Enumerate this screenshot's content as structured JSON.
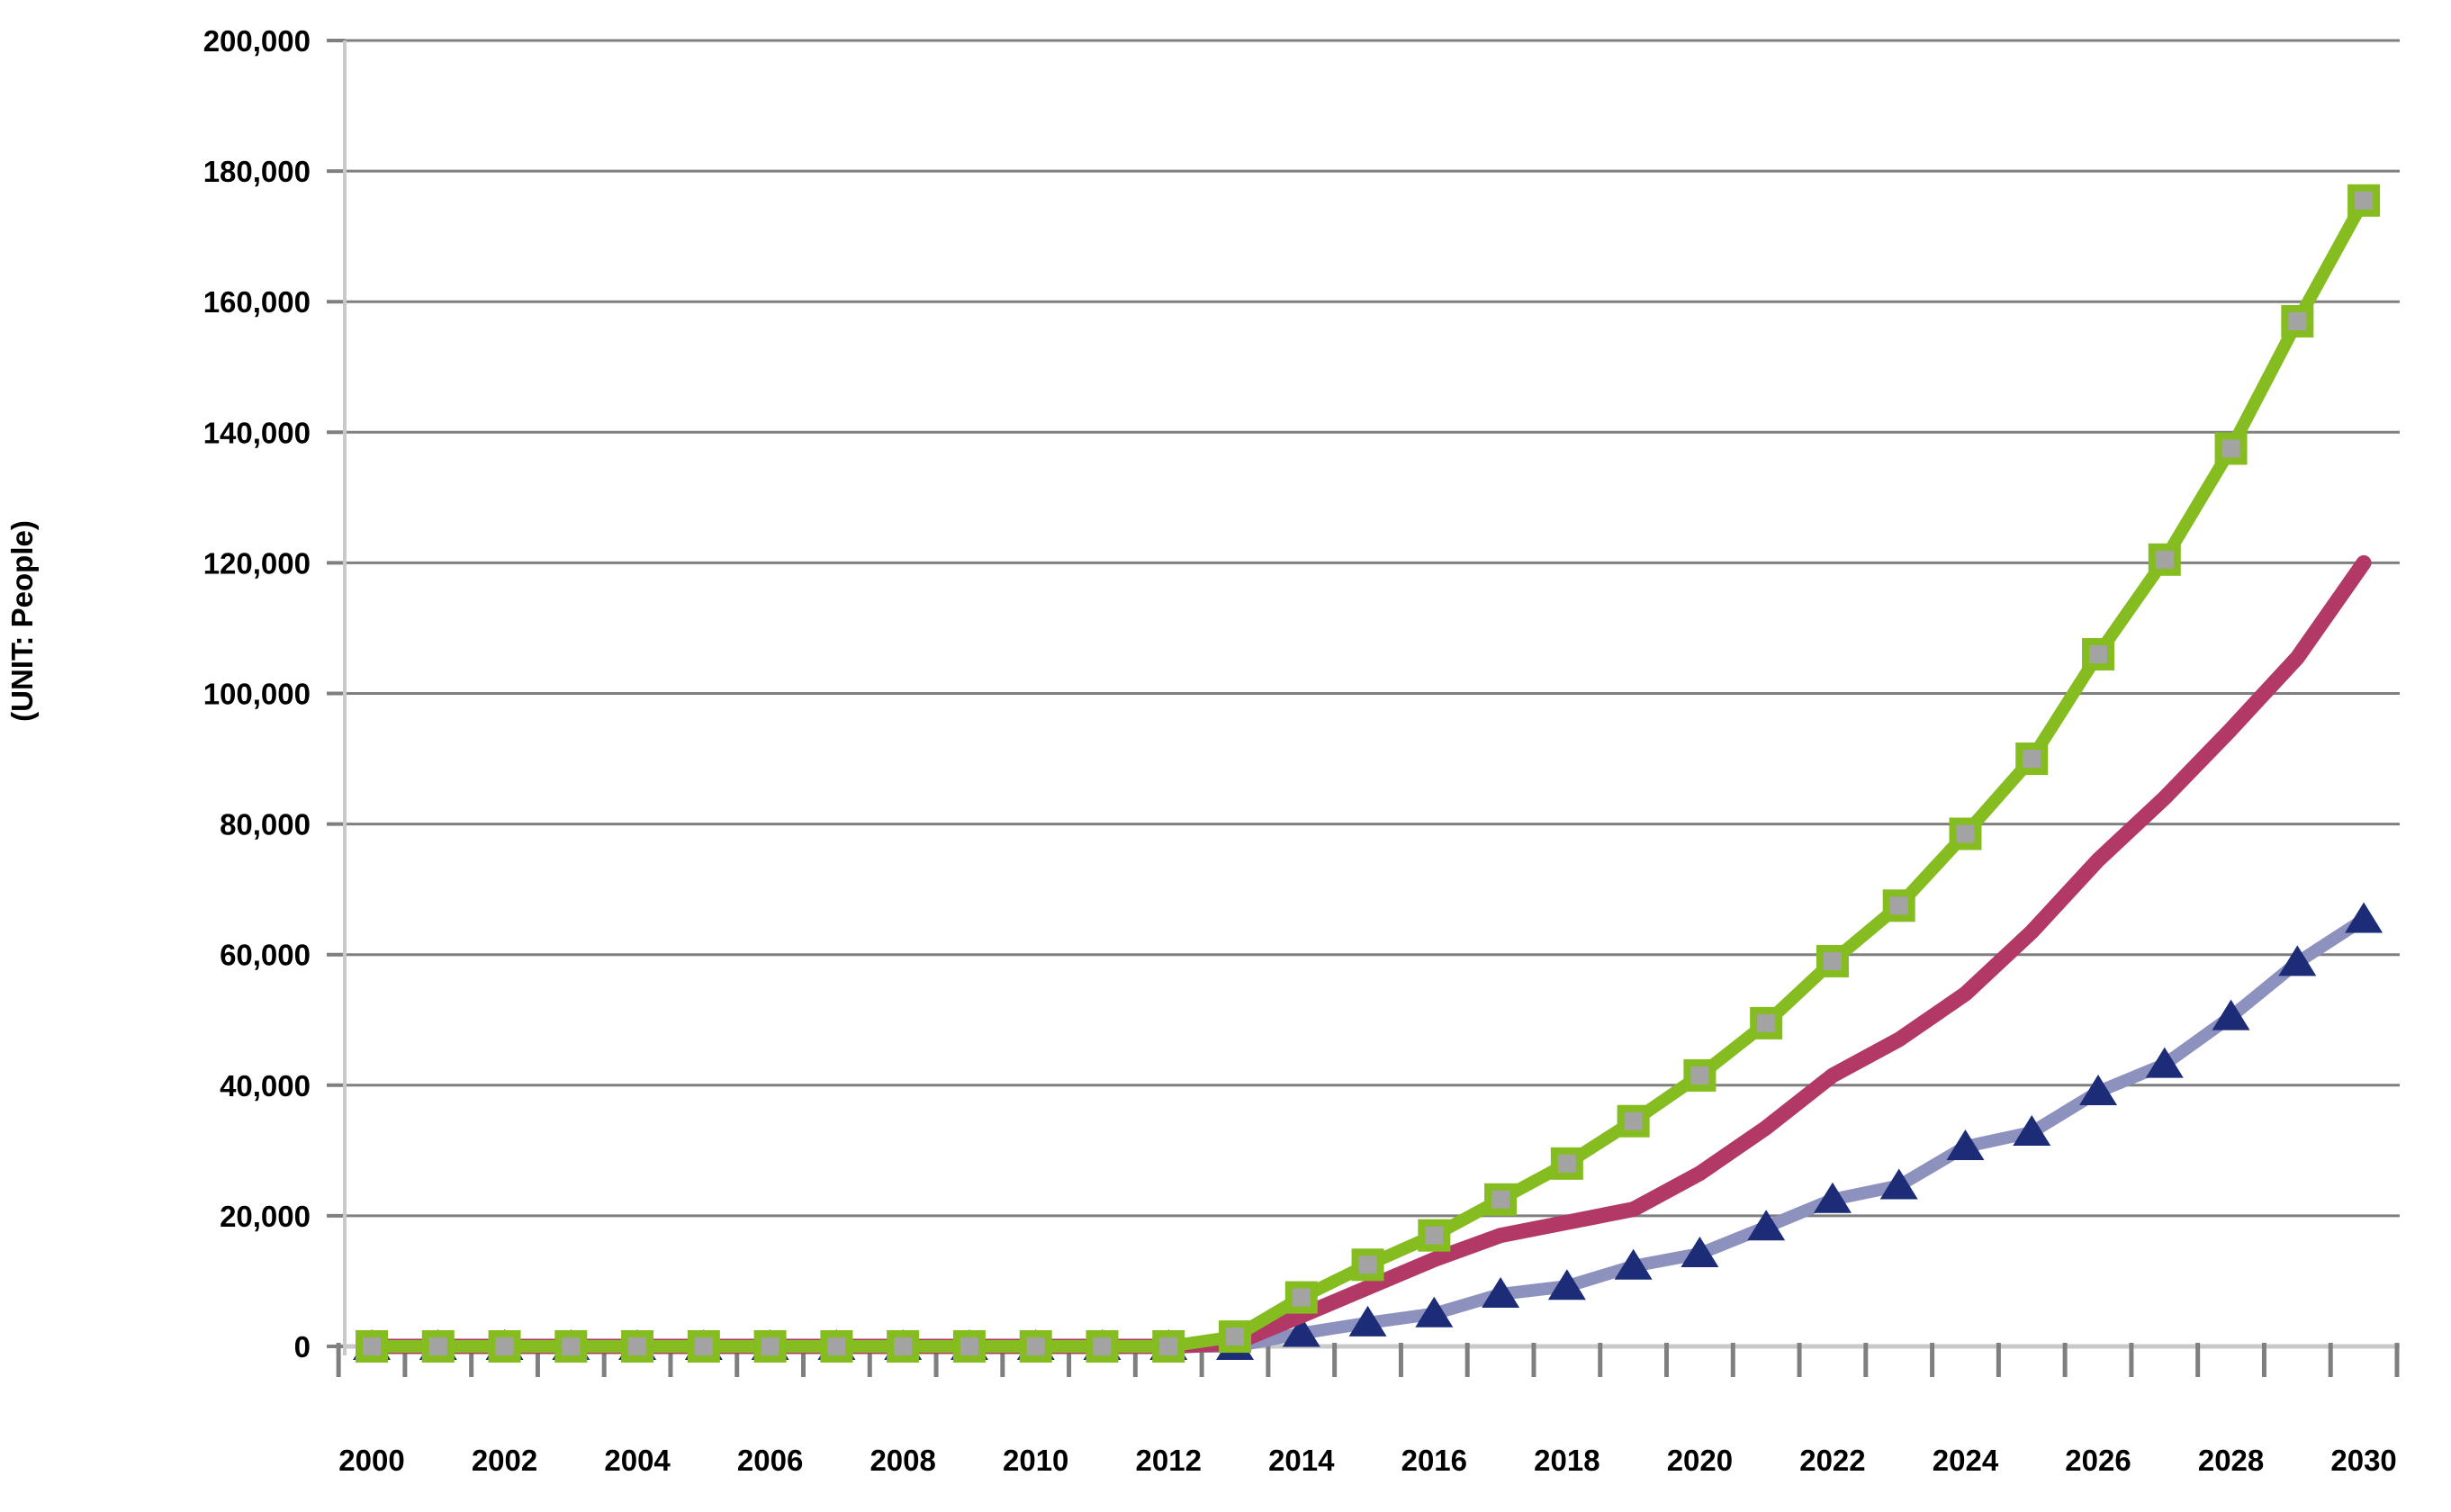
{
  "chart_data": {
    "type": "line",
    "title": "",
    "xlabel": "",
    "ylabel": "(UNIT: People)",
    "x": [
      2000,
      2001,
      2002,
      2003,
      2004,
      2005,
      2006,
      2007,
      2008,
      2009,
      2010,
      2011,
      2012,
      2013,
      2014,
      2015,
      2016,
      2017,
      2018,
      2019,
      2020,
      2021,
      2022,
      2023,
      2024,
      2025,
      2026,
      2027,
      2028,
      2029,
      2030
    ],
    "x_tick_labels": [
      "2000",
      "2002",
      "2004",
      "2006",
      "2008",
      "2010",
      "2012",
      "2014",
      "2016",
      "2018",
      "2020",
      "2022",
      "2024",
      "2026",
      "2028",
      "2030"
    ],
    "ylim": [
      0,
      200000
    ],
    "y_tick_step": 20000,
    "y_tick_labels": [
      "0",
      "20,000",
      "40,000",
      "60,000",
      "80,000",
      "100,000",
      "120,000",
      "140,000",
      "160,000",
      "180,000",
      "200,000"
    ],
    "grid": "horizontal",
    "legend_position": "none",
    "colors": {
      "gridline": "#7f7f7f",
      "axis_light": "#c9c9c9",
      "tick": "#7f7f7f",
      "green_line": "#85bc20",
      "green_marker_fill": "#a3a3a3",
      "magenta_line": "#b23866",
      "blue_line": "#8c91be",
      "blue_marker_fill": "#1d2c77"
    },
    "series": [
      {
        "name": "blue-triangles",
        "line_color": "#8c91be",
        "marker": "triangle",
        "marker_color": "#1d2c77",
        "values": [
          0,
          0,
          0,
          0,
          0,
          0,
          0,
          0,
          0,
          0,
          0,
          0,
          0,
          0,
          2000,
          3600,
          5000,
          8000,
          9200,
          12300,
          14200,
          18300,
          22500,
          24600,
          30600,
          32800,
          39000,
          43200,
          50500,
          58800,
          65400
        ]
      },
      {
        "name": "magenta-plain",
        "line_color": "#b23866",
        "marker": "none",
        "marker_color": "",
        "values": [
          0,
          0,
          0,
          0,
          0,
          0,
          0,
          0,
          0,
          0,
          0,
          0,
          0,
          500,
          4700,
          9000,
          13300,
          17000,
          19000,
          21000,
          26500,
          33500,
          41500,
          47000,
          54000,
          63500,
          74500,
          84000,
          94500,
          105500,
          120000
        ]
      },
      {
        "name": "green-squares",
        "line_color": "#85bc20",
        "marker": "square",
        "marker_color": "#a3a3a3",
        "values": [
          0,
          0,
          0,
          0,
          0,
          0,
          0,
          0,
          0,
          0,
          0,
          0,
          0,
          1500,
          7500,
          12500,
          17000,
          22500,
          28000,
          34500,
          41500,
          49500,
          59000,
          67500,
          78500,
          90000,
          106000,
          120500,
          137500,
          157000,
          175500
        ]
      }
    ]
  }
}
